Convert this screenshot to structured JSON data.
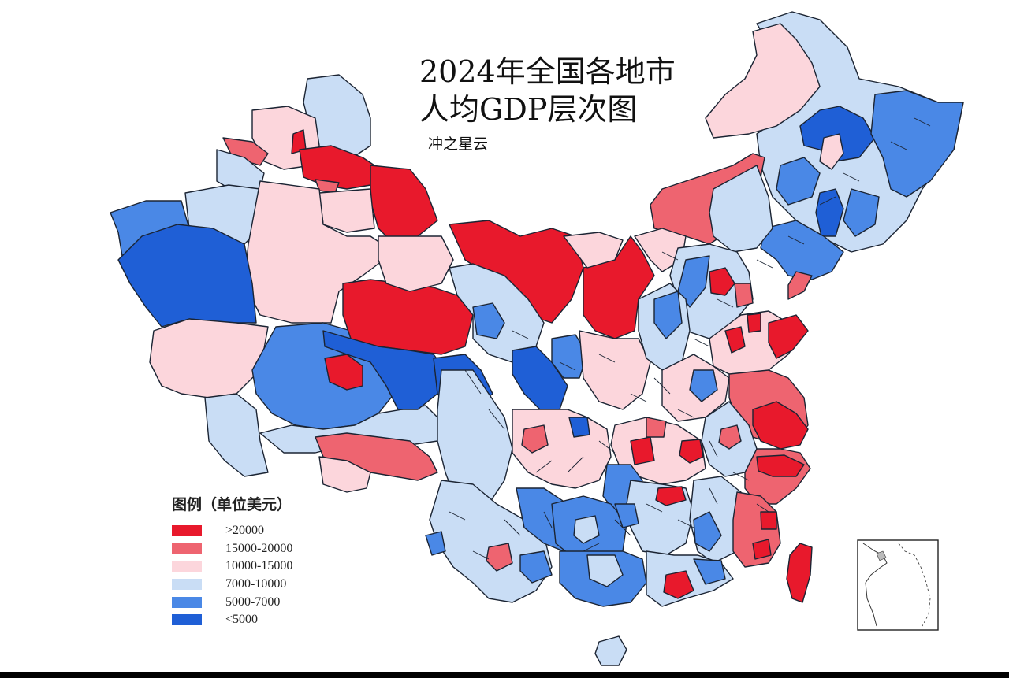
{
  "title": {
    "line1": "2024年全国各地市",
    "line2": "人均GDP层次图"
  },
  "author": "冲之星云",
  "legend": {
    "title": "图例（单位美元）",
    "items": [
      {
        "label": ">20000",
        "color": "#e8192c"
      },
      {
        "label": "15000-20000",
        "color": "#ee6470"
      },
      {
        "label": "10000-15000",
        "color": "#fcd6dc"
      },
      {
        "label": "7000-10000",
        "color": "#c9ddf5"
      },
      {
        "label": "5000-7000",
        "color": "#4a88e6"
      },
      {
        "label": "<5000",
        "color": "#1f5fd6"
      }
    ]
  },
  "colors": {
    "border": "#1b2433",
    "background": "#ffffff"
  }
}
